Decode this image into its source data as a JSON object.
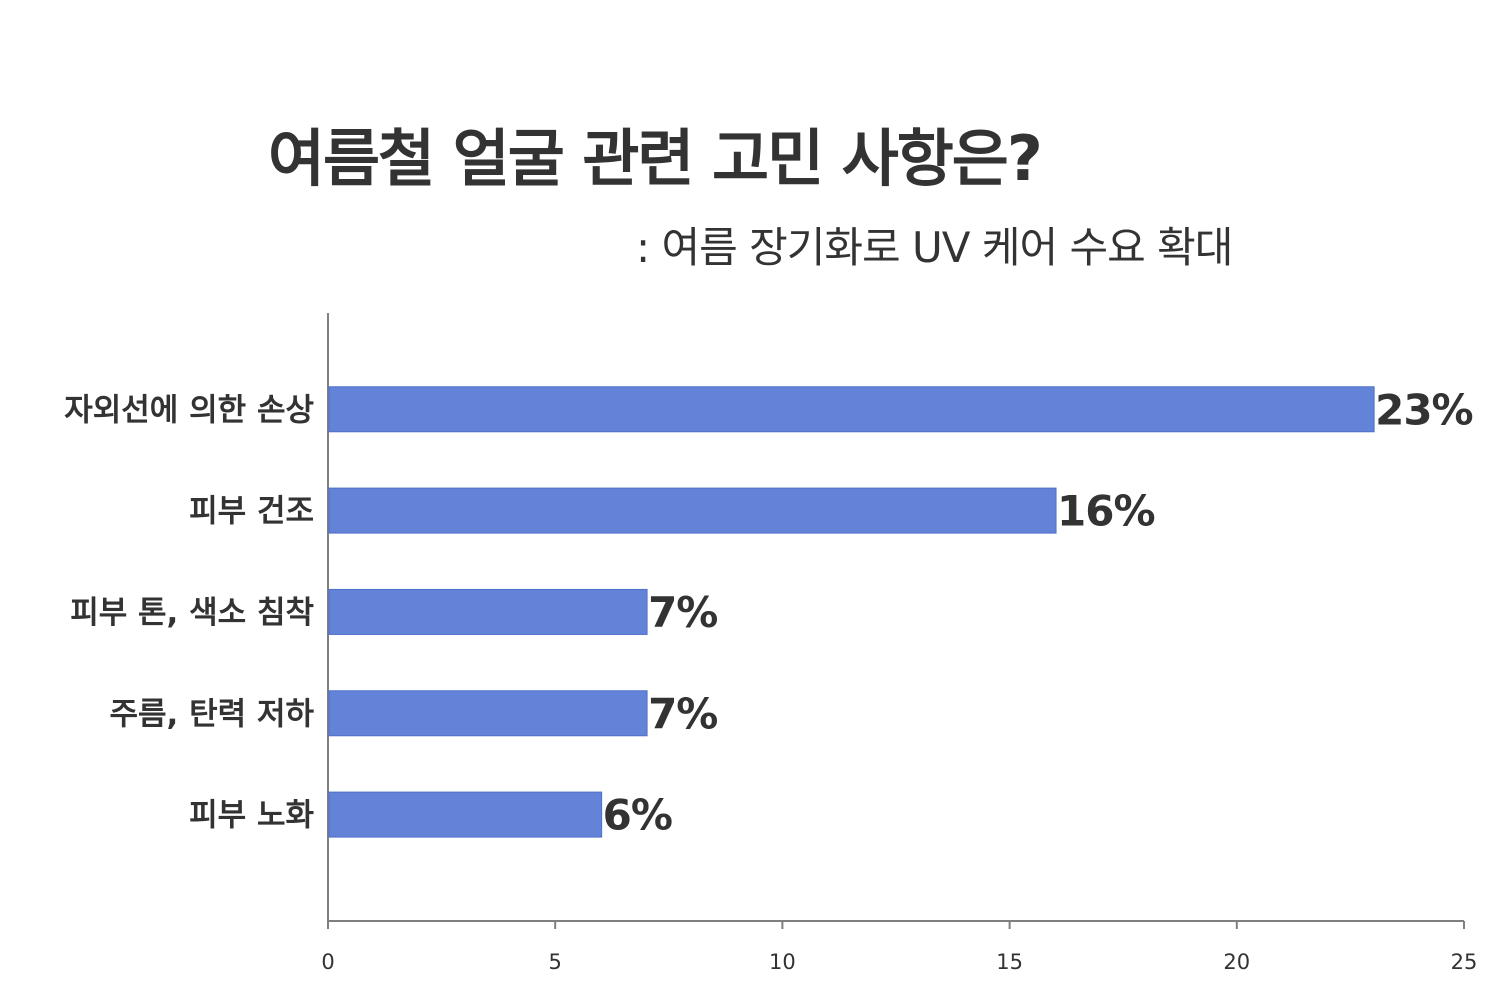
{
  "title": "여름철 얼굴 관련 고민 사항은?",
  "subtitle": ": 여름 장기화로 UV 케어 수요 확대",
  "chart_data": {
    "type": "bar",
    "orientation": "horizontal",
    "categories": [
      "자외선에 의한 손상",
      "피부 건조",
      "피부 톤, 색소 침착",
      "주름, 탄력 저하",
      "피부 노화"
    ],
    "values": [
      23,
      16,
      7,
      7,
      6
    ],
    "value_labels": [
      "23%",
      "16%",
      "7%",
      "7%",
      "6%"
    ],
    "xlim": [
      0,
      25
    ],
    "xticks": [
      0,
      5,
      10,
      15,
      20,
      25
    ],
    "xtick_labels": [
      "0",
      "5",
      "10",
      "15",
      "20",
      "25"
    ],
    "bar_color": "#6283d8",
    "grid": false,
    "legend": "none"
  }
}
